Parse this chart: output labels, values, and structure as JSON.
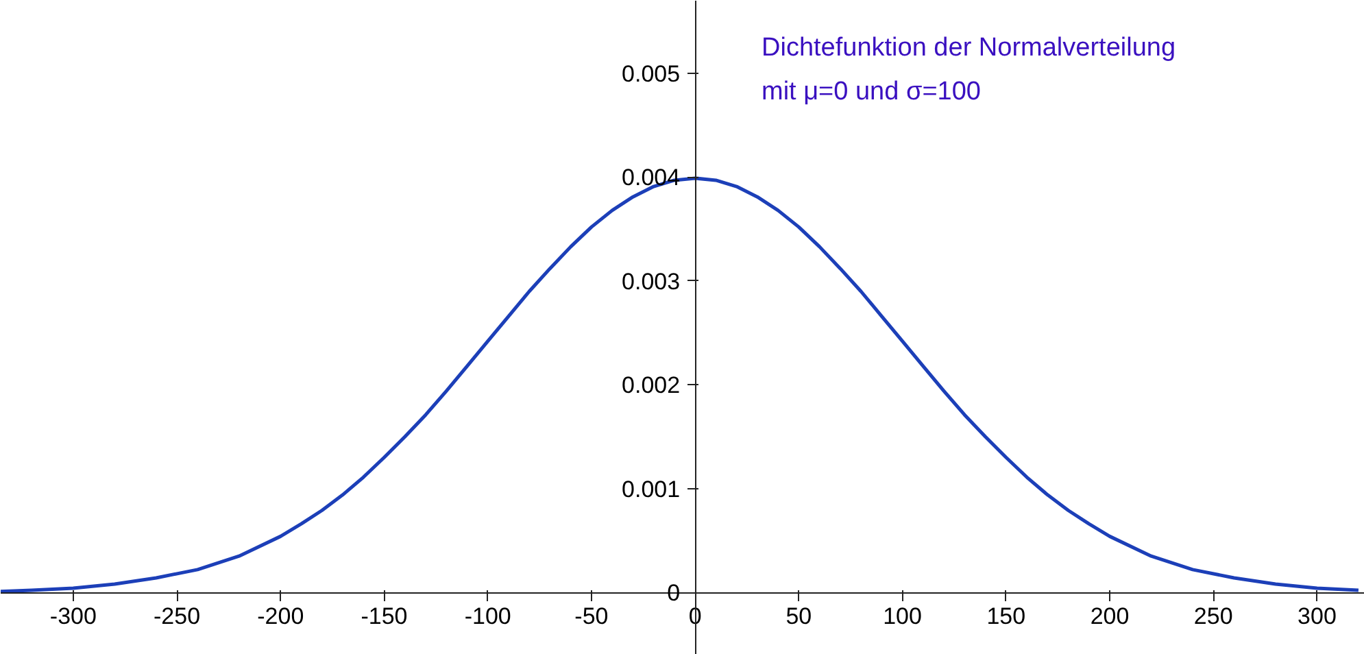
{
  "chart_data": {
    "type": "line",
    "x": [
      -335,
      -320,
      -300,
      -280,
      -260,
      -240,
      -220,
      -200,
      -190,
      -180,
      -170,
      -160,
      -150,
      -140,
      -130,
      -120,
      -110,
      -100,
      -90,
      -80,
      -70,
      -60,
      -50,
      -40,
      -30,
      -20,
      -10,
      0,
      10,
      20,
      30,
      40,
      50,
      60,
      70,
      80,
      90,
      100,
      110,
      120,
      130,
      140,
      150,
      160,
      170,
      180,
      190,
      200,
      220,
      240,
      260,
      280,
      300,
      320
    ],
    "series": [
      {
        "color": "#1c3fb8",
        "values": [
          1e-05,
          2e-05,
          4e-05,
          8e-05,
          0.00014,
          0.00022,
          0.00035,
          0.00054,
          0.00066,
          0.00079,
          0.00094,
          0.00111,
          0.0013,
          0.0015,
          0.00171,
          0.00194,
          0.00218,
          0.00242,
          0.00266,
          0.0029,
          0.00312,
          0.00333,
          0.00352,
          0.00368,
          0.00381,
          0.00391,
          0.00397,
          0.00399,
          0.00397,
          0.00391,
          0.00381,
          0.00368,
          0.00352,
          0.00333,
          0.00312,
          0.0029,
          0.00266,
          0.00242,
          0.00218,
          0.00194,
          0.00171,
          0.0015,
          0.0013,
          0.00111,
          0.00094,
          0.00079,
          0.00066,
          0.00054,
          0.00035,
          0.00022,
          0.00014,
          8e-05,
          4e-05,
          2e-05
        ]
      }
    ],
    "xlim": [
      -335,
      323
    ],
    "ylim": [
      -0.0006,
      0.0057
    ],
    "xticks": [
      -300,
      -250,
      -200,
      -150,
      -100,
      -50,
      0,
      50,
      100,
      150,
      200,
      250,
      300
    ],
    "yticks": [
      0,
      0.001,
      0.002,
      0.003,
      0.004,
      0.005
    ],
    "grid": false,
    "marker": "none",
    "line_style": "solid",
    "annotations": [
      "Dichtefunktion der Normalverteilung",
      "mit μ=0 und σ=100"
    ]
  }
}
